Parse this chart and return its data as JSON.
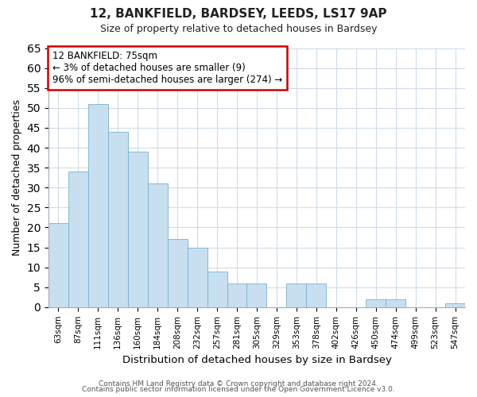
{
  "title": "12, BANKFIELD, BARDSEY, LEEDS, LS17 9AP",
  "subtitle": "Size of property relative to detached houses in Bardsey",
  "xlabel": "Distribution of detached houses by size in Bardsey",
  "ylabel": "Number of detached properties",
  "bar_color": "#c8dff0",
  "bar_edge_color": "#7ab0cc",
  "highlight_edge_color": "#cc0000",
  "categories": [
    "63sqm",
    "87sqm",
    "111sqm",
    "136sqm",
    "160sqm",
    "184sqm",
    "208sqm",
    "232sqm",
    "257sqm",
    "281sqm",
    "305sqm",
    "329sqm",
    "353sqm",
    "378sqm",
    "402sqm",
    "426sqm",
    "450sqm",
    "474sqm",
    "499sqm",
    "523sqm",
    "547sqm"
  ],
  "values": [
    21,
    34,
    51,
    44,
    39,
    31,
    17,
    15,
    9,
    6,
    6,
    0,
    6,
    6,
    0,
    0,
    2,
    2,
    0,
    0,
    1
  ],
  "highlight_index": 0,
  "ylim": [
    0,
    65
  ],
  "yticks": [
    0,
    5,
    10,
    15,
    20,
    25,
    30,
    35,
    40,
    45,
    50,
    55,
    60,
    65
  ],
  "annotation_title": "12 BANKFIELD: 75sqm",
  "annotation_line1": "← 3% of detached houses are smaller (9)",
  "annotation_line2": "96% of semi-detached houses are larger (274) →",
  "footer1": "Contains HM Land Registry data © Crown copyright and database right 2024.",
  "footer2": "Contains public sector information licensed under the Open Government Licence v3.0.",
  "background_color": "#ffffff",
  "plot_background": "#ffffff",
  "grid_color": "#d0dce8",
  "annotation_box_edge": "#cc0000",
  "title_fontsize": 11,
  "subtitle_fontsize": 9
}
